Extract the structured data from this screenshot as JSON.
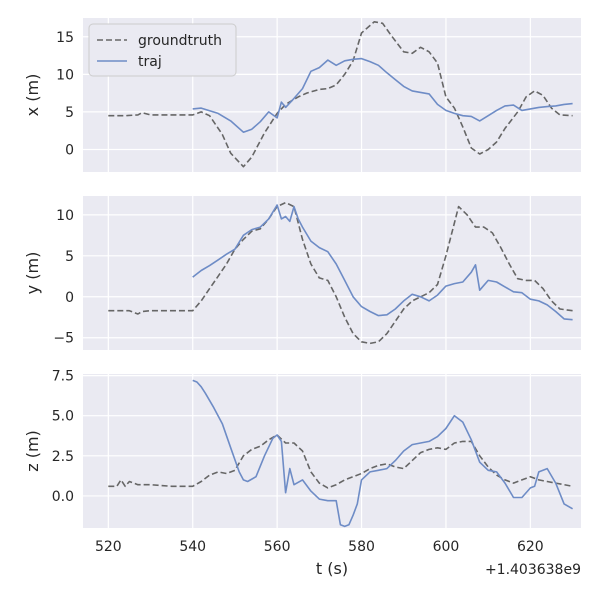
{
  "chart_data": [
    {
      "type": "line",
      "ylabel": "x (m)",
      "ylim": [
        -3.0,
        17.5
      ],
      "yticks": [
        0,
        5,
        10,
        15
      ],
      "ytick_labels": [
        "0",
        "5",
        "10",
        "15"
      ],
      "grid": true,
      "legend": "top-left",
      "series": [
        {
          "name": "groundtruth",
          "style": "dashed",
          "color": "#666666",
          "x": [
            520,
            524,
            527,
            528,
            530,
            535,
            540,
            542,
            544,
            547,
            549,
            552,
            554,
            557,
            560,
            562,
            565,
            567,
            570,
            572,
            574,
            576,
            578,
            580,
            583,
            585,
            587,
            590,
            592,
            594,
            596,
            598,
            600,
            602,
            604,
            606,
            608,
            610,
            612,
            614,
            617,
            619,
            621,
            623,
            625,
            627,
            630
          ],
          "y": [
            4.5,
            4.5,
            4.6,
            4.9,
            4.6,
            4.6,
            4.6,
            5.0,
            4.5,
            2.0,
            -0.5,
            -2.3,
            -1.0,
            2.2,
            4.8,
            6.0,
            7.0,
            7.5,
            8.0,
            8.1,
            8.6,
            10.0,
            11.8,
            15.5,
            17.0,
            16.8,
            15.2,
            13.0,
            12.8,
            13.6,
            13.0,
            11.5,
            7.0,
            5.5,
            3.0,
            0.2,
            -0.6,
            0.0,
            1.0,
            2.8,
            5.0,
            7.0,
            7.8,
            7.2,
            5.5,
            4.6,
            4.5
          ]
        },
        {
          "name": "traj",
          "style": "solid",
          "color": "#6e8cc6",
          "x": [
            540,
            542,
            546,
            549,
            552,
            554,
            556,
            558,
            560,
            561,
            562,
            564,
            566,
            568,
            570,
            572,
            574,
            576,
            578,
            580,
            582,
            584,
            586,
            588,
            590,
            592,
            594,
            596,
            598,
            600,
            602,
            604,
            606,
            608,
            610,
            612,
            614,
            616,
            618,
            620,
            622,
            624,
            626,
            628,
            630
          ],
          "y": [
            5.4,
            5.5,
            4.8,
            3.8,
            2.3,
            2.7,
            3.7,
            5.0,
            4.2,
            6.3,
            5.6,
            6.8,
            8.1,
            10.4,
            10.9,
            11.9,
            11.2,
            11.8,
            12.0,
            12.1,
            11.7,
            11.2,
            10.2,
            9.3,
            8.4,
            7.8,
            7.6,
            7.4,
            6.0,
            5.2,
            4.8,
            4.5,
            4.4,
            3.8,
            4.5,
            5.2,
            5.8,
            5.9,
            5.2,
            5.4,
            5.6,
            5.7,
            5.8,
            6.0,
            6.1
          ]
        }
      ]
    },
    {
      "type": "line",
      "ylabel": "y (m)",
      "ylim": [
        -6.5,
        12.3
      ],
      "yticks": [
        -5,
        0,
        5,
        10
      ],
      "ytick_labels": [
        "−5",
        "0",
        "5",
        "10"
      ],
      "grid": true,
      "series": [
        {
          "name": "groundtruth",
          "style": "dashed",
          "color": "#666666",
          "x": [
            520,
            525,
            527,
            528,
            530,
            535,
            540,
            542,
            544,
            546,
            548,
            550,
            552,
            554,
            556,
            558,
            560,
            562,
            564,
            566,
            568,
            570,
            572,
            574,
            576,
            578,
            580,
            582,
            584,
            586,
            588,
            590,
            592,
            594,
            596,
            598,
            600,
            602,
            603,
            605,
            607,
            609,
            611,
            613,
            615,
            617,
            619,
            621,
            623,
            625,
            627,
            630
          ],
          "y": [
            -1.7,
            -1.7,
            -2.1,
            -1.8,
            -1.7,
            -1.7,
            -1.7,
            -0.5,
            1.0,
            2.5,
            4.0,
            5.8,
            7.0,
            8.0,
            8.3,
            9.5,
            11.0,
            11.5,
            11.0,
            7.0,
            4.0,
            2.3,
            2.0,
            0.0,
            -2.5,
            -4.5,
            -5.5,
            -5.7,
            -5.5,
            -4.5,
            -3.0,
            -1.5,
            -0.5,
            0.0,
            0.5,
            1.5,
            5.0,
            9.0,
            11.0,
            10.0,
            8.5,
            8.5,
            7.8,
            6.0,
            4.0,
            2.2,
            2.0,
            2.0,
            1.0,
            -0.5,
            -1.5,
            -1.7
          ]
        },
        {
          "name": "traj",
          "style": "solid",
          "color": "#6e8cc6",
          "x": [
            540,
            542,
            544,
            546,
            548,
            550,
            552,
            554,
            556,
            558,
            560,
            561,
            562,
            563,
            564,
            565,
            566,
            568,
            570,
            572,
            574,
            576,
            578,
            580,
            582,
            584,
            586,
            588,
            590,
            592,
            594,
            596,
            598,
            600,
            602,
            604,
            606,
            607,
            608,
            609,
            610,
            612,
            614,
            616,
            618,
            620,
            622,
            624,
            626,
            628,
            630
          ],
          "y": [
            2.4,
            3.2,
            3.8,
            4.5,
            5.2,
            5.8,
            7.5,
            8.2,
            8.5,
            9.5,
            11.2,
            9.5,
            9.8,
            9.2,
            11.0,
            9.5,
            8.5,
            6.8,
            6.0,
            5.5,
            4.0,
            2.0,
            0.0,
            -1.2,
            -1.8,
            -2.3,
            -2.2,
            -1.5,
            -0.5,
            0.3,
            0.0,
            -0.5,
            0.2,
            1.3,
            1.6,
            1.8,
            3.0,
            3.9,
            0.8,
            1.4,
            2.0,
            1.8,
            1.2,
            0.6,
            0.5,
            -0.3,
            -0.5,
            -1.0,
            -1.8,
            -2.7,
            -2.8
          ]
        }
      ]
    },
    {
      "type": "line",
      "ylabel": "z (m)",
      "ylim": [
        -2.0,
        7.6
      ],
      "yticks": [
        0.0,
        2.5,
        5.0,
        7.5
      ],
      "ytick_labels": [
        "0.0",
        "2.5",
        "5.0",
        "7.5"
      ],
      "grid": true,
      "xlabel": "t (s)",
      "xlim": [
        514,
        632
      ],
      "xticks": [
        520,
        540,
        560,
        580,
        600,
        620
      ],
      "xtick_labels": [
        "520",
        "540",
        "560",
        "580",
        "600",
        "620"
      ],
      "x_offset_label": "+1.403638e9",
      "series": [
        {
          "name": "groundtruth",
          "style": "dashed",
          "color": "#666666",
          "x": [
            520,
            522,
            523,
            524,
            525,
            527,
            530,
            535,
            540,
            542,
            544,
            546,
            548,
            550,
            552,
            554,
            556,
            558,
            560,
            562,
            564,
            566,
            568,
            570,
            572,
            574,
            576,
            578,
            580,
            582,
            584,
            586,
            588,
            590,
            592,
            594,
            596,
            598,
            600,
            602,
            604,
            606,
            608,
            610,
            612,
            614,
            616,
            618,
            620,
            622,
            624,
            626,
            628,
            630
          ],
          "y": [
            0.6,
            0.6,
            1.0,
            0.6,
            0.9,
            0.7,
            0.7,
            0.6,
            0.6,
            0.9,
            1.3,
            1.5,
            1.4,
            1.6,
            2.5,
            2.9,
            3.1,
            3.5,
            3.8,
            3.3,
            3.3,
            2.8,
            1.5,
            0.8,
            0.5,
            0.7,
            1.0,
            1.2,
            1.4,
            1.7,
            1.9,
            2.0,
            1.8,
            1.7,
            2.2,
            2.7,
            2.9,
            3.0,
            2.9,
            3.3,
            3.4,
            3.4,
            2.5,
            1.8,
            1.3,
            1.0,
            0.8,
            1.0,
            1.2,
            1.0,
            0.9,
            0.8,
            0.7,
            0.6
          ]
        },
        {
          "name": "traj",
          "style": "solid",
          "color": "#6e8cc6",
          "x": [
            540,
            541,
            542,
            543,
            545,
            547,
            549,
            551,
            552,
            553,
            555,
            557,
            559,
            560,
            561,
            562,
            563,
            564,
            566,
            568,
            570,
            572,
            574,
            575,
            576,
            577,
            578,
            579,
            580,
            582,
            584,
            586,
            588,
            590,
            592,
            594,
            596,
            598,
            600,
            602,
            604,
            606,
            608,
            610,
            612,
            614,
            616,
            618,
            620,
            621,
            622,
            624,
            626,
            628,
            630
          ],
          "y": [
            7.2,
            7.1,
            6.8,
            6.4,
            5.5,
            4.5,
            3.0,
            1.5,
            1.0,
            0.9,
            1.2,
            2.5,
            3.6,
            3.8,
            3.4,
            0.2,
            1.7,
            0.7,
            1.0,
            0.3,
            -0.2,
            -0.3,
            -0.3,
            -1.8,
            -1.9,
            -1.8,
            -1.2,
            -0.5,
            1.0,
            1.5,
            1.6,
            1.7,
            2.2,
            2.8,
            3.2,
            3.3,
            3.4,
            3.7,
            4.2,
            5.0,
            4.6,
            3.5,
            2.1,
            1.6,
            1.5,
            0.8,
            -0.1,
            -0.1,
            0.5,
            0.6,
            1.5,
            1.7,
            0.8,
            -0.5,
            -0.8
          ]
        }
      ]
    }
  ]
}
